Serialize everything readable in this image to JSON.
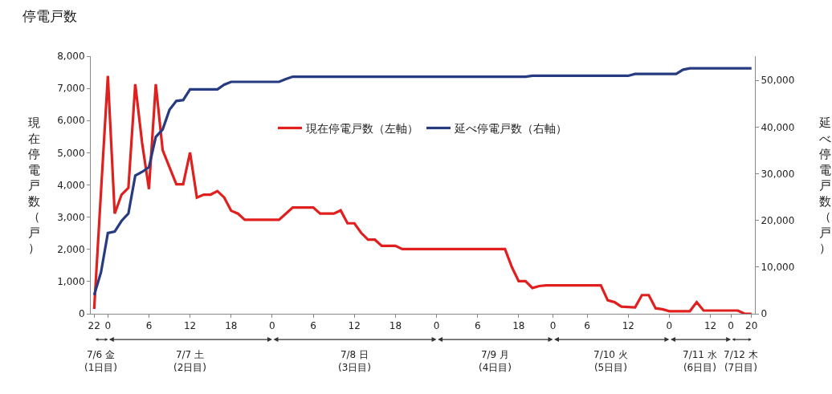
{
  "chart_data": {
    "type": "line",
    "title": "停電戸数",
    "ylabel": "現在停電戸数（戸）",
    "y2label": "延べ停電戸数（戸）",
    "categories": [
      "22",
      null,
      "0",
      null,
      null,
      null,
      null,
      null,
      "6",
      null,
      null,
      null,
      null,
      null,
      "12",
      null,
      null,
      null,
      null,
      null,
      "18",
      null,
      null,
      null,
      null,
      null,
      "0",
      null,
      null,
      null,
      null,
      null,
      "6",
      null,
      null,
      null,
      null,
      null,
      "12",
      null,
      null,
      null,
      null,
      null,
      "18",
      null,
      null,
      null,
      null,
      null,
      "0",
      null,
      null,
      null,
      null,
      null,
      "6",
      null,
      null,
      null,
      null,
      null,
      "18",
      null,
      null,
      null,
      null,
      "0",
      null,
      null,
      null,
      null,
      "6",
      null,
      null,
      null,
      null,
      null,
      "12",
      null,
      null,
      null,
      null,
      null,
      "0",
      null,
      null,
      null,
      null,
      null,
      "12",
      null,
      null,
      "0",
      null,
      null,
      "20"
    ],
    "ylim": [
      0,
      8000
    ],
    "yticks": [
      0,
      {
        "value": 1000,
        "label": "1,000"
      },
      {
        "value": 2000,
        "label": "2,000"
      },
      {
        "value": 3000,
        "label": "3,000"
      },
      {
        "value": 4000,
        "label": "4,000"
      },
      {
        "value": 5000,
        "label": "5,000"
      },
      {
        "value": 6000,
        "label": "6,000"
      },
      {
        "value": 7000,
        "label": "7,000"
      },
      {
        "value": 8000,
        "label": "8,000"
      }
    ],
    "y2lim": [
      0,
      55200
    ],
    "y2ticks": [
      0,
      {
        "value": 10000,
        "label": "10,000"
      },
      {
        "value": 20000,
        "label": "20,000"
      },
      {
        "value": 30000,
        "label": "30,000"
      },
      {
        "value": 40000,
        "label": "40,000"
      },
      {
        "value": 50000,
        "label": "50,000"
      }
    ],
    "series": [
      {
        "name": "現在停電戸数（左軸）",
        "color": "#e0201f",
        "values": [
          150,
          3800,
          7390,
          3110,
          3700,
          3910,
          7130,
          5310,
          3870,
          7130,
          5080,
          4550,
          4020,
          4020,
          5010,
          3610,
          3700,
          3700,
          3810,
          3610,
          3200,
          3110,
          2920,
          2920,
          2920,
          2920,
          2920,
          2920,
          3110,
          3300,
          3300,
          3300,
          3300,
          3110,
          3110,
          3110,
          3210,
          2810,
          2810,
          2510,
          2300,
          2300,
          2110,
          2110,
          2110,
          2010,
          2010,
          2010,
          2010,
          2010,
          2010,
          2010,
          2010,
          2010,
          2010,
          2010,
          2010,
          2010,
          2010,
          2010,
          2010,
          1450,
          1010,
          1010,
          800,
          860,
          880,
          880,
          880,
          880,
          880,
          880,
          880,
          880,
          880,
          420,
          360,
          220,
          210,
          200,
          580,
          580,
          170,
          140,
          80,
          80,
          80,
          80,
          360,
          100,
          100,
          100,
          100,
          100,
          100,
          0,
          0
        ]
      },
      {
        "name": "延べ停電戸数（右軸）",
        "color": "#263b80",
        "axis": "y2",
        "values": [
          4000,
          8900,
          17300,
          17600,
          19900,
          21500,
          29600,
          30400,
          31400,
          37900,
          39500,
          43700,
          45600,
          45800,
          48100,
          48100,
          48100,
          48100,
          48100,
          49100,
          49700,
          49700,
          49700,
          49700,
          49700,
          49700,
          49700,
          49700,
          50300,
          50800,
          50800,
          50800,
          50800,
          50800,
          50800,
          50800,
          50800,
          50800,
          50800,
          50800,
          50800,
          50800,
          50800,
          50800,
          50800,
          50800,
          50800,
          50800,
          50800,
          50800,
          50800,
          50800,
          50800,
          50800,
          50800,
          50800,
          50800,
          50800,
          50800,
          50800,
          50800,
          50800,
          50800,
          50800,
          51000,
          51000,
          51000,
          51000,
          51000,
          51000,
          51000,
          51000,
          51000,
          51000,
          51000,
          51000,
          51000,
          51000,
          51000,
          51400,
          51400,
          51400,
          51400,
          51400,
          51400,
          51400,
          52300,
          52600,
          52600,
          52600,
          52600,
          52600,
          52600,
          52600,
          52600,
          52600,
          52600
        ]
      }
    ],
    "annotations": [
      "7/6 金\n(1日目)",
      "7/7 土\n(2日目)",
      "7/8 日\n(3日目)",
      "7/9 月\n(4日目)",
      "7/10 火\n(5日目)",
      "7/11 水\n(6日目)",
      "7/12 木\n(7日目)"
    ],
    "legend": "center",
    "marker": "none",
    "line_style": "solid"
  }
}
